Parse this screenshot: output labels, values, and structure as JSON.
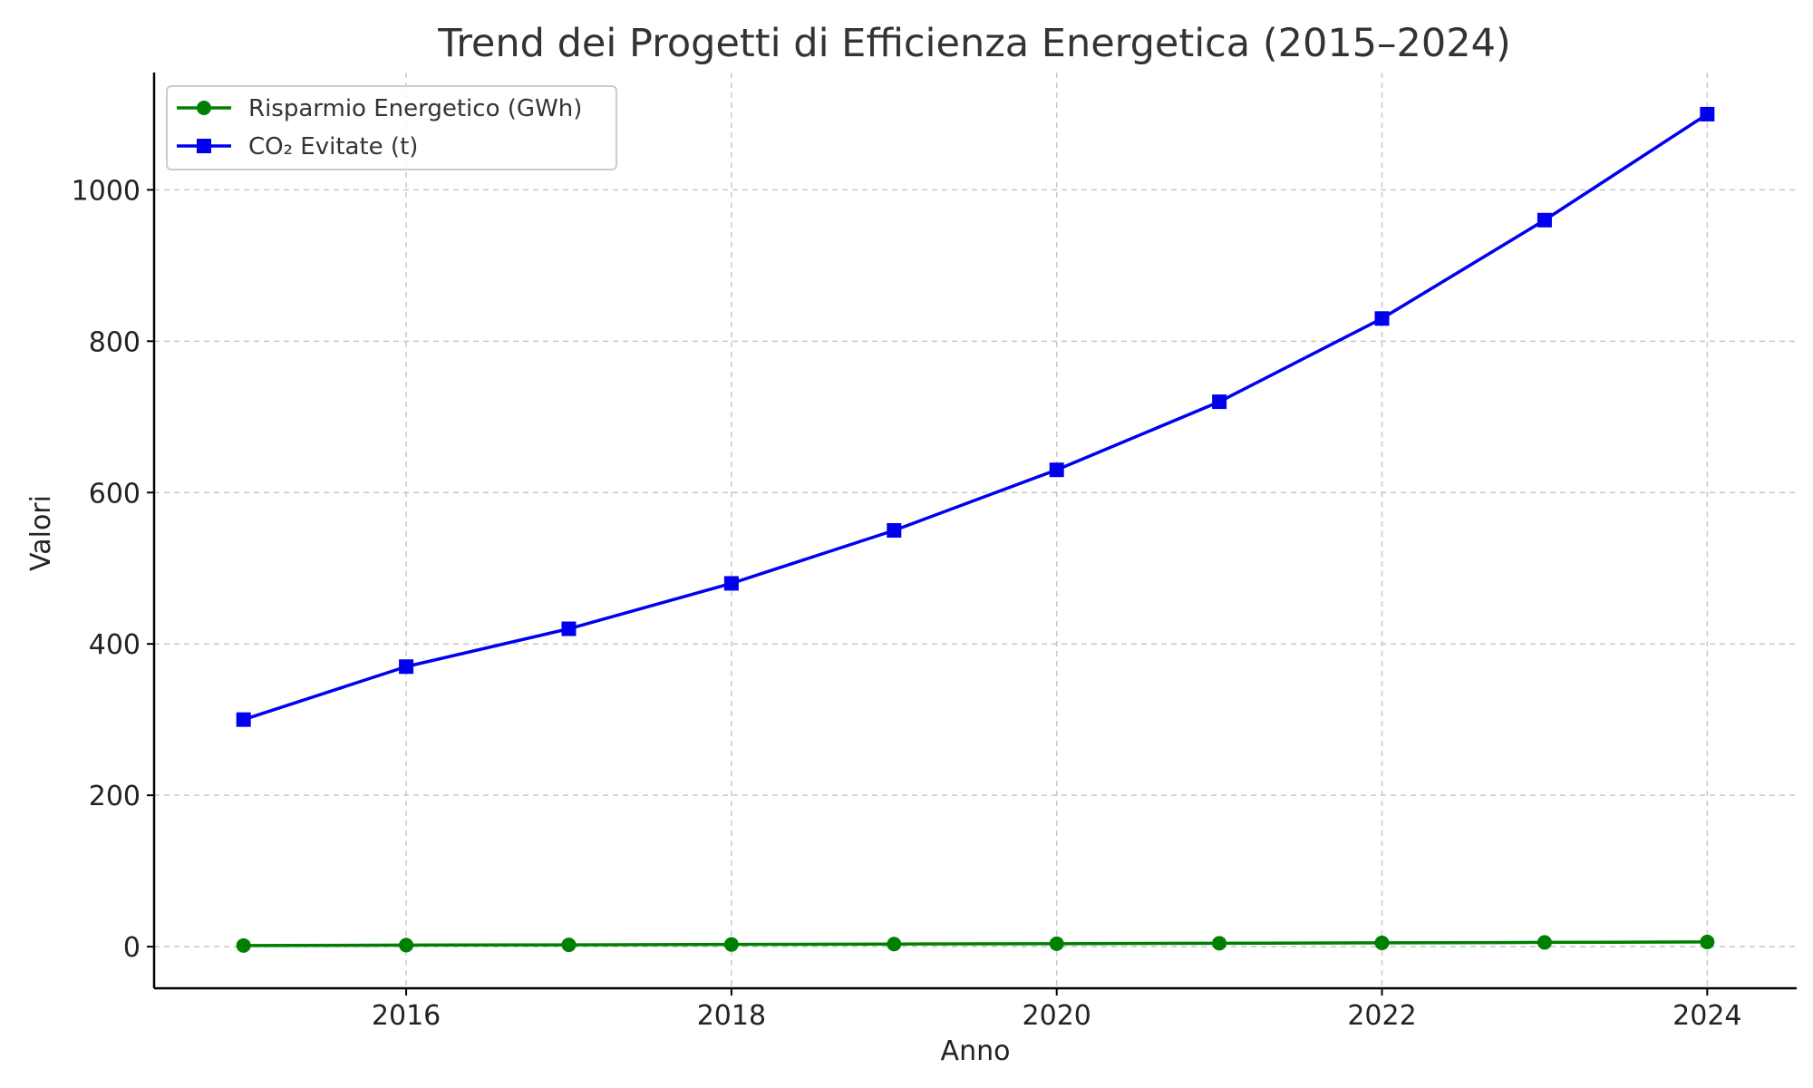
{
  "chart_data": {
    "type": "line",
    "title": "Trend dei Progetti di Efficienza Energetica (2015–2024)",
    "xlabel": "Anno",
    "ylabel": "Valori",
    "x": [
      2015,
      2016,
      2017,
      2018,
      2019,
      2020,
      2021,
      2022,
      2023,
      2024
    ],
    "xlim": [
      2014.45,
      2024.55
    ],
    "ylim": [
      -55,
      1155
    ],
    "x_ticks": [
      2016,
      2018,
      2020,
      2022,
      2024
    ],
    "y_ticks": [
      0,
      200,
      400,
      600,
      800,
      1000
    ],
    "grid": true,
    "legend_position": "top-left",
    "series": [
      {
        "name": "Risparmio Energetico (GWh)",
        "color": "#008000",
        "marker": "circle",
        "values": [
          1.5,
          2.0,
          2.4,
          2.9,
          3.4,
          3.9,
          4.5,
          5.0,
          5.6,
          6.2
        ]
      },
      {
        "name": "CO₂ Evitate (t)",
        "color": "#0000ee",
        "marker": "square",
        "values": [
          300,
          370,
          420,
          480,
          550,
          630,
          720,
          830,
          960,
          1100
        ]
      }
    ]
  }
}
